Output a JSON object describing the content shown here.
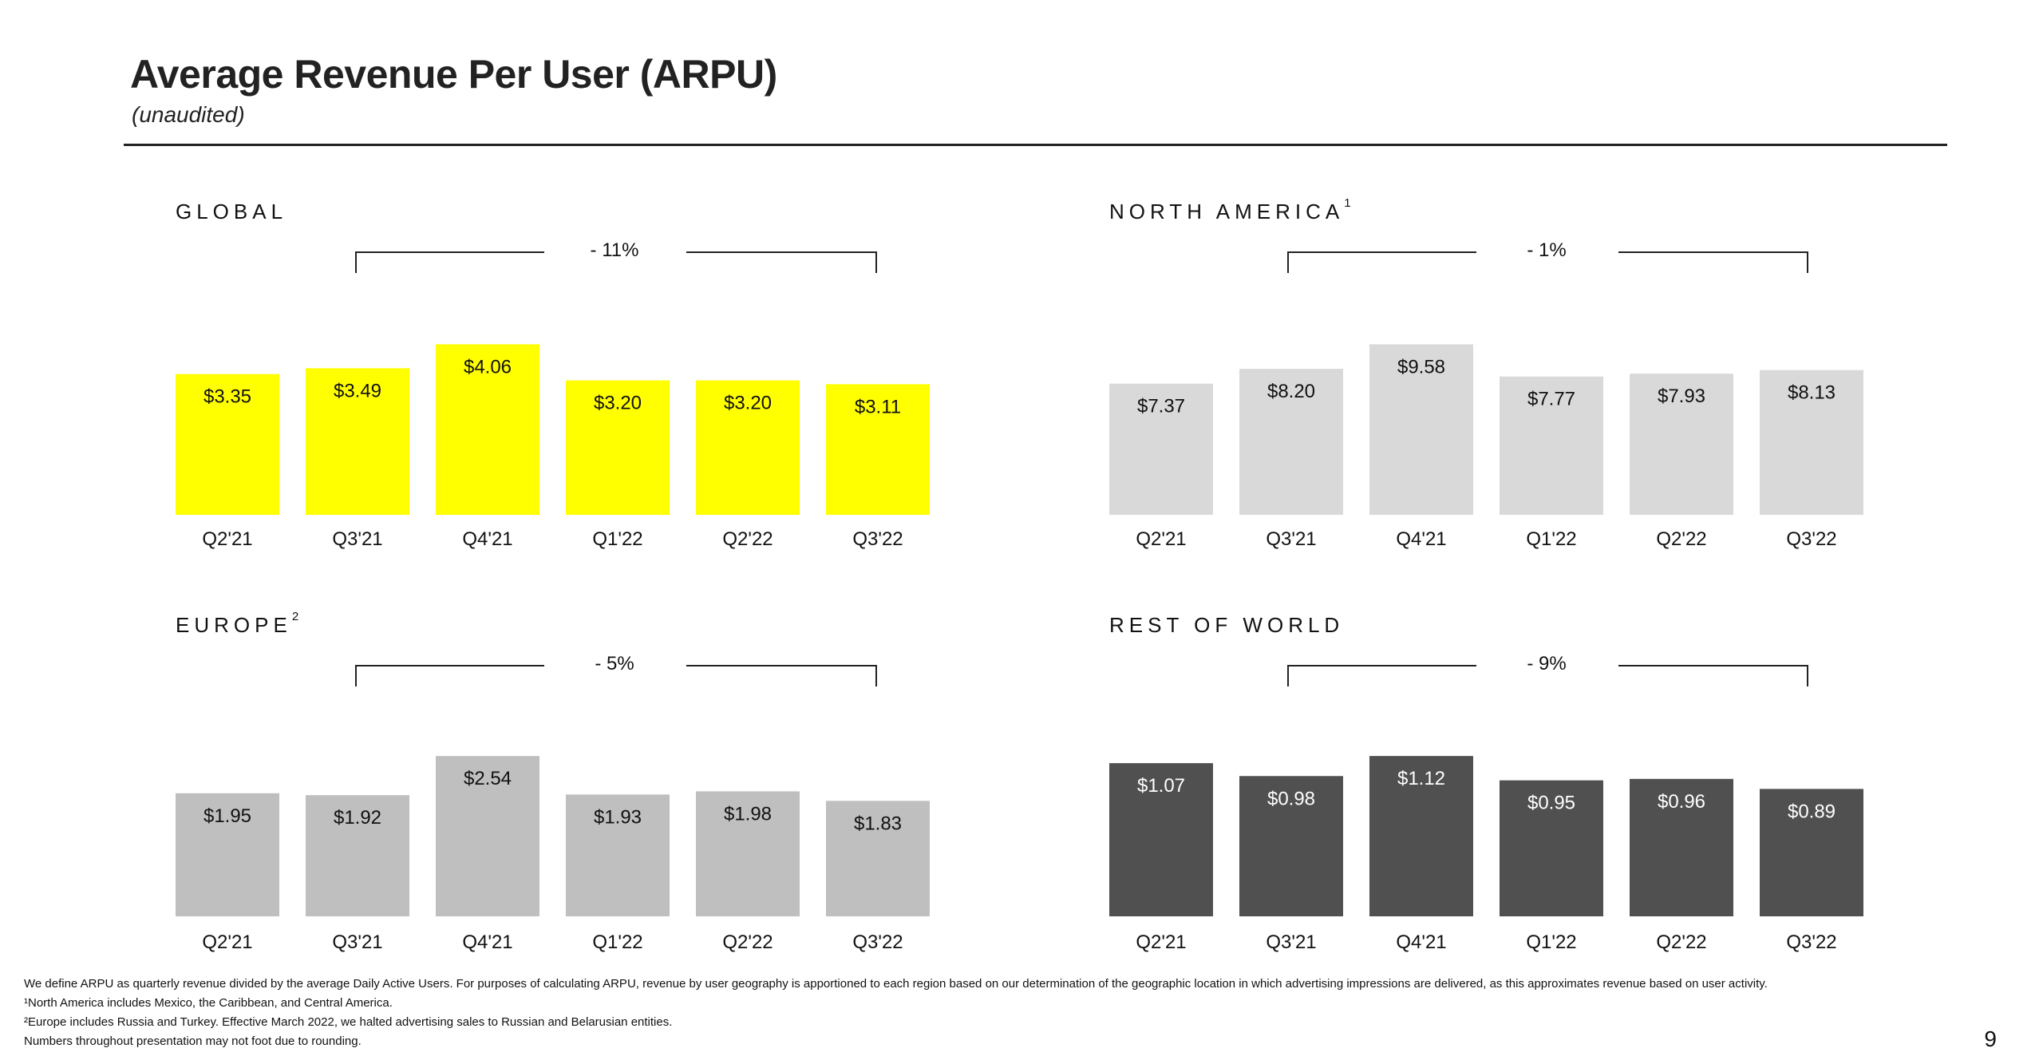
{
  "header": {
    "title": "Average Revenue Per User (ARPU)",
    "subtitle": "(unaudited)"
  },
  "chart_data": [
    {
      "type": "bar",
      "title": "GLOBAL",
      "title_superscript": "",
      "categories": [
        "Q2'21",
        "Q3'21",
        "Q4'21",
        "Q1'22",
        "Q2'22",
        "Q3'22"
      ],
      "values": [
        3.35,
        3.49,
        4.06,
        3.2,
        3.2,
        3.11
      ],
      "data_labels": [
        "$3.35",
        "$3.49",
        "$4.06",
        "$3.20",
        "$3.20",
        "$3.11"
      ],
      "change": "- 11%",
      "bar_color": "#FFFF00",
      "label_color": "#111111"
    },
    {
      "type": "bar",
      "title": "NORTH AMERICA",
      "title_superscript": "1",
      "categories": [
        "Q2'21",
        "Q3'21",
        "Q4'21",
        "Q1'22",
        "Q2'22",
        "Q3'22"
      ],
      "values": [
        7.37,
        8.2,
        9.58,
        7.77,
        7.93,
        8.13
      ],
      "data_labels": [
        "$7.37",
        "$8.20",
        "$9.58",
        "$7.77",
        "$7.93",
        "$8.13"
      ],
      "change": "- 1%",
      "bar_color": "#D9D9D9",
      "label_color": "#111111"
    },
    {
      "type": "bar",
      "title": "EUROPE",
      "title_superscript": "2",
      "categories": [
        "Q2'21",
        "Q3'21",
        "Q4'21",
        "Q1'22",
        "Q2'22",
        "Q3'22"
      ],
      "values": [
        1.95,
        1.92,
        2.54,
        1.93,
        1.98,
        1.83
      ],
      "data_labels": [
        "$1.95",
        "$1.92",
        "$2.54",
        "$1.93",
        "$1.98",
        "$1.83"
      ],
      "change": "- 5%",
      "bar_color": "#BFBFBF",
      "label_color": "#111111"
    },
    {
      "type": "bar",
      "title": "REST OF WORLD",
      "title_superscript": "",
      "categories": [
        "Q2'21",
        "Q3'21",
        "Q4'21",
        "Q1'22",
        "Q2'22",
        "Q3'22"
      ],
      "values": [
        1.07,
        0.98,
        1.12,
        0.95,
        0.96,
        0.89
      ],
      "data_labels": [
        "$1.07",
        "$0.98",
        "$1.12",
        "$0.95",
        "$0.96",
        "$0.89"
      ],
      "change": "- 9%",
      "bar_color": "#505050",
      "label_color": "#FFFFFF"
    }
  ],
  "footnotes": {
    "line1": "We define ARPU as quarterly revenue divided by the average Daily Active Users. For purposes of calculating ARPU, revenue by user geography is apportioned to each region based on our determination of the geographic location in which advertising impressions are delivered, as this approximates revenue based on user activity.",
    "line2": "¹North America includes Mexico, the Caribbean, and Central America.",
    "line3": "²Europe includes Russia and Turkey. Effective March 2022, we halted advertising sales to Russian and Belarusian entities.",
    "line4": "Numbers throughout presentation may not foot due to rounding."
  },
  "page_number": "9"
}
